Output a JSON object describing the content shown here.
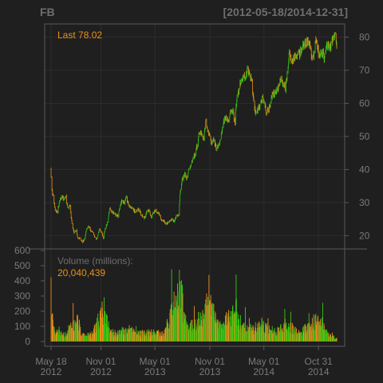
{
  "chart_data": {
    "type": "candlestick_with_volume",
    "symbol": "FB",
    "date_range": "[2012-05-18/2014-12-31]",
    "last_label": "Last 78.02",
    "volume_title": "Volume (millions):",
    "volume_last": "20,040,439",
    "price_axis": {
      "ticks": [
        20,
        30,
        40,
        50,
        60,
        70,
        80
      ],
      "range": [
        16,
        84
      ]
    },
    "volume_axis": {
      "ticks": [
        0,
        100,
        200,
        300,
        400,
        500,
        600
      ],
      "range": [
        0,
        600
      ]
    },
    "x_ticks": [
      {
        "date": "2012-05-18",
        "line1": "May 18",
        "line2": "2012"
      },
      {
        "date": "2012-11-01",
        "line1": "Nov 01",
        "line2": "2012"
      },
      {
        "date": "2013-05-01",
        "line1": "May 01",
        "line2": "2013"
      },
      {
        "date": "2013-11-01",
        "line1": "Nov 01",
        "line2": "2013"
      },
      {
        "date": "2014-05-01",
        "line1": "May 01",
        "line2": "2014"
      },
      {
        "date": "2014-10-31",
        "line1": "Oct 31",
        "line2": "2014"
      }
    ],
    "x_range": [
      "2012-05-18",
      "2014-12-31"
    ],
    "price_path": [
      [
        "2012-05-18",
        38.2
      ],
      [
        "2012-05-21",
        34.0
      ],
      [
        "2012-05-25",
        31.9
      ],
      [
        "2012-06-01",
        27.7
      ],
      [
        "2012-06-08",
        27.1
      ],
      [
        "2012-06-15",
        30.0
      ],
      [
        "2012-06-22",
        32.0
      ],
      [
        "2012-06-29",
        31.1
      ],
      [
        "2012-07-06",
        31.7
      ],
      [
        "2012-07-13",
        28.3
      ],
      [
        "2012-07-20",
        29.0
      ],
      [
        "2012-07-27",
        23.7
      ],
      [
        "2012-08-03",
        21.1
      ],
      [
        "2012-08-10",
        21.6
      ],
      [
        "2012-08-17",
        19.1
      ],
      [
        "2012-08-24",
        19.4
      ],
      [
        "2012-08-31",
        18.1
      ],
      [
        "2012-09-07",
        18.9
      ],
      [
        "2012-09-14",
        22.0
      ],
      [
        "2012-09-21",
        22.9
      ],
      [
        "2012-09-28",
        21.7
      ],
      [
        "2012-10-05",
        20.9
      ],
      [
        "2012-10-12",
        19.5
      ],
      [
        "2012-10-19",
        19.0
      ],
      [
        "2012-10-26",
        21.9
      ],
      [
        "2012-11-02",
        21.2
      ],
      [
        "2012-11-09",
        19.2
      ],
      [
        "2012-11-16",
        22.4
      ],
      [
        "2012-11-23",
        24.0
      ],
      [
        "2012-11-30",
        28.0
      ],
      [
        "2012-12-07",
        27.5
      ],
      [
        "2012-12-14",
        26.8
      ],
      [
        "2012-12-21",
        26.3
      ],
      [
        "2012-12-28",
        25.9
      ],
      [
        "2013-01-04",
        28.8
      ],
      [
        "2013-01-11",
        31.0
      ],
      [
        "2013-01-18",
        29.7
      ],
      [
        "2013-01-25",
        31.5
      ],
      [
        "2013-02-01",
        29.7
      ],
      [
        "2013-02-08",
        28.5
      ],
      [
        "2013-02-15",
        28.3
      ],
      [
        "2013-02-22",
        27.1
      ],
      [
        "2013-03-01",
        27.8
      ],
      [
        "2013-03-08",
        27.9
      ],
      [
        "2013-03-15",
        26.5
      ],
      [
        "2013-03-22",
        25.7
      ],
      [
        "2013-03-29",
        25.6
      ],
      [
        "2013-04-05",
        27.4
      ],
      [
        "2013-04-12",
        27.4
      ],
      [
        "2013-04-19",
        25.7
      ],
      [
        "2013-04-26",
        26.9
      ],
      [
        "2013-05-03",
        27.6
      ],
      [
        "2013-05-10",
        26.7
      ],
      [
        "2013-05-17",
        26.3
      ],
      [
        "2013-05-24",
        24.3
      ],
      [
        "2013-05-31",
        24.4
      ],
      [
        "2013-06-07",
        23.3
      ],
      [
        "2013-06-14",
        24.0
      ],
      [
        "2013-06-21",
        24.5
      ],
      [
        "2013-06-28",
        24.9
      ],
      [
        "2013-07-05",
        24.4
      ],
      [
        "2013-07-12",
        25.9
      ],
      [
        "2013-07-19",
        26.0
      ],
      [
        "2013-07-26",
        34.4
      ],
      [
        "2013-08-02",
        37.5
      ],
      [
        "2013-08-09",
        38.5
      ],
      [
        "2013-08-16",
        37.1
      ],
      [
        "2013-08-23",
        40.6
      ],
      [
        "2013-08-30",
        41.3
      ],
      [
        "2013-09-06",
        43.9
      ],
      [
        "2013-09-13",
        44.3
      ],
      [
        "2013-09-20",
        47.5
      ],
      [
        "2013-09-27",
        51.2
      ],
      [
        "2013-10-04",
        51.0
      ],
      [
        "2013-10-11",
        49.1
      ],
      [
        "2013-10-18",
        54.2
      ],
      [
        "2013-10-25",
        51.9
      ],
      [
        "2013-11-01",
        49.8
      ],
      [
        "2013-11-08",
        47.5
      ],
      [
        "2013-11-15",
        49.0
      ],
      [
        "2013-11-22",
        46.2
      ],
      [
        "2013-11-29",
        47.0
      ],
      [
        "2013-12-06",
        48.3
      ],
      [
        "2013-12-13",
        53.3
      ],
      [
        "2013-12-20",
        55.1
      ],
      [
        "2013-12-27",
        55.4
      ],
      [
        "2014-01-03",
        54.6
      ],
      [
        "2014-01-10",
        57.9
      ],
      [
        "2014-01-17",
        57.6
      ],
      [
        "2014-01-24",
        54.5
      ],
      [
        "2014-01-31",
        62.6
      ],
      [
        "2014-02-07",
        64.3
      ],
      [
        "2014-02-14",
        67.1
      ],
      [
        "2014-02-21",
        68.1
      ],
      [
        "2014-02-28",
        68.5
      ],
      [
        "2014-03-07",
        69.8
      ],
      [
        "2014-03-14",
        68.7
      ],
      [
        "2014-03-21",
        67.2
      ],
      [
        "2014-03-28",
        60.0
      ],
      [
        "2014-04-04",
        56.8
      ],
      [
        "2014-04-11",
        58.5
      ],
      [
        "2014-04-18",
        58.9
      ],
      [
        "2014-04-25",
        61.2
      ],
      [
        "2014-05-02",
        61.5
      ],
      [
        "2014-05-09",
        57.2
      ],
      [
        "2014-05-16",
        58.0
      ],
      [
        "2014-05-23",
        60.2
      ],
      [
        "2014-05-30",
        63.3
      ],
      [
        "2014-06-06",
        62.5
      ],
      [
        "2014-06-13",
        64.5
      ],
      [
        "2014-06-20",
        64.5
      ],
      [
        "2014-06-27",
        67.6
      ],
      [
        "2014-07-04",
        66.3
      ],
      [
        "2014-07-11",
        64.9
      ],
      [
        "2014-07-18",
        68.4
      ],
      [
        "2014-07-25",
        75.2
      ],
      [
        "2014-08-01",
        72.4
      ],
      [
        "2014-08-08",
        73.1
      ],
      [
        "2014-08-15",
        73.6
      ],
      [
        "2014-08-22",
        74.6
      ],
      [
        "2014-08-29",
        74.8
      ],
      [
        "2014-09-05",
        77.0
      ],
      [
        "2014-09-12",
        77.5
      ],
      [
        "2014-09-19",
        77.9
      ],
      [
        "2014-09-26",
        78.8
      ],
      [
        "2014-10-03",
        77.4
      ],
      [
        "2014-10-10",
        72.9
      ],
      [
        "2014-10-17",
        75.9
      ],
      [
        "2014-10-24",
        80.0
      ],
      [
        "2014-10-31",
        74.9
      ],
      [
        "2014-11-07",
        75.6
      ],
      [
        "2014-11-14",
        74.9
      ],
      [
        "2014-11-21",
        73.8
      ],
      [
        "2014-11-28",
        77.7
      ],
      [
        "2014-12-05",
        76.5
      ],
      [
        "2014-12-12",
        77.8
      ],
      [
        "2014-12-19",
        79.9
      ],
      [
        "2014-12-26",
        80.8
      ],
      [
        "2014-12-31",
        78.02
      ]
    ],
    "volume_path": [
      [
        "2012-05-18",
        573
      ],
      [
        "2012-05-21",
        168
      ],
      [
        "2012-05-25",
        120
      ],
      [
        "2012-06-01",
        60
      ],
      [
        "2012-06-15",
        55
      ],
      [
        "2012-07-01",
        40
      ],
      [
        "2012-07-27",
        95
      ],
      [
        "2012-08-16",
        130
      ],
      [
        "2012-09-01",
        40
      ],
      [
        "2012-10-01",
        45
      ],
      [
        "2012-11-14",
        220
      ],
      [
        "2012-12-01",
        60
      ],
      [
        "2013-01-01",
        55
      ],
      [
        "2013-02-01",
        85
      ],
      [
        "2013-03-01",
        50
      ],
      [
        "2013-05-01",
        60
      ],
      [
        "2013-06-01",
        45
      ],
      [
        "2013-07-25",
        365
      ],
      [
        "2013-08-15",
        90
      ],
      [
        "2013-09-15",
        110
      ],
      [
        "2013-10-31",
        250
      ],
      [
        "2013-12-01",
        90
      ],
      [
        "2014-01-30",
        200
      ],
      [
        "2014-02-20",
        90
      ],
      [
        "2014-03-25",
        80
      ],
      [
        "2014-04-24",
        110
      ],
      [
        "2014-06-01",
        60
      ],
      [
        "2014-07-24",
        100
      ],
      [
        "2014-09-01",
        60
      ],
      [
        "2014-10-29",
        150
      ],
      [
        "2014-12-01",
        45
      ],
      [
        "2014-12-31",
        20
      ]
    ],
    "colors": {
      "up": "#39c912",
      "down": "#e8911c",
      "background": "#1f1f1f",
      "frame": "#5a5a5a",
      "grid": "#2c2c2c",
      "text": "#7a7a7a",
      "title": "#6e6e6e"
    }
  }
}
